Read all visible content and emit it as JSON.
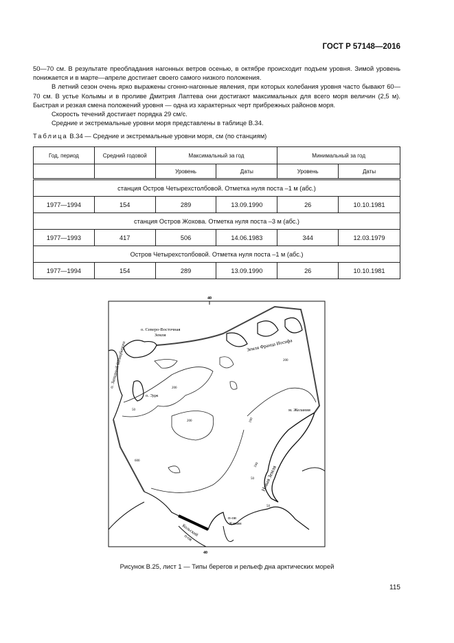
{
  "header": "ГОСТ Р 57148—2016",
  "paragraphs": [
    "50—70 см. В результате преобладания нагонных ветров осенью, в октябре происходит подъем уровня. Зимой уровень понижается и в марте—апреле достигает своего самого низкого положения.",
    "В летний сезон очень ярко выражены сгонно-нагонные явления, при которых колебания уровня часто бывают 60—70 см. В устье Колымы и в проливе Дмитрия Лаптева они достигают максимальных для всего моря величин (2,5 м). Быстрая и резкая смена положений уровня — одна из характерных черт прибрежных районов моря.",
    "Скорость течений достигает порядка 29 см/с.",
    "Средние и экстремальные уровни моря представлены в таблице В.34."
  ],
  "table": {
    "label": "Таблица",
    "caption": " В.34 — Средние и экстремальные уровни моря, см (по станциям)",
    "headers": {
      "period": "Год, период",
      "mean": "Средний годовой",
      "max": "Максимальный за год",
      "min": "Минимальный за год",
      "level": "Уровень",
      "dates": "Даты"
    },
    "groups": [
      {
        "station": "станция Остров Четырехстолбовой. Отметка нуля поста –1 м (абс.)",
        "row": [
          "1977—1994",
          "154",
          "289",
          "13.09.1990",
          "26",
          "10.10.1981"
        ]
      },
      {
        "station": "станция Остров Жохова. Отметка нуля поста –3 м (абс.)",
        "row": [
          "1977—1993",
          "417",
          "506",
          "14.06.1983",
          "344",
          "12.03.1979"
        ]
      },
      {
        "station": "Остров Четырехстолбовой. Отметка нуля поста –1 м (абс.)",
        "row": [
          "1977—1994",
          "154",
          "289",
          "13.09.1990",
          "26",
          "10.10.1981"
        ]
      }
    ]
  },
  "map": {
    "meridian_top": "40",
    "meridian_bottom": "40",
    "labels": {
      "severo": "о. Северо-Восточная",
      "zemlya": "Земля",
      "franz": "Земля Франца Иосифа",
      "zapadny": "о. Западный Шпицберген",
      "edzh": "о. Эдж",
      "zhelaniya": "м. Желания",
      "novaya": "Новая Земля",
      "kolsky1": "Кольский",
      "kolsky2": "п-ов",
      "kanin1": "п-ов",
      "kanin2": "Канин",
      "d200a": "200",
      "d200b": "200",
      "d200c": "200",
      "d100a": "100",
      "d100b": "100",
      "d50a": "50",
      "d50b": "50",
      "d50c": "50",
      "d600": "600"
    }
  },
  "figure_caption": "Рисунок В.25, лист 1 — Типы берегов и рельеф дна арктических морей",
  "page_number": "115"
}
